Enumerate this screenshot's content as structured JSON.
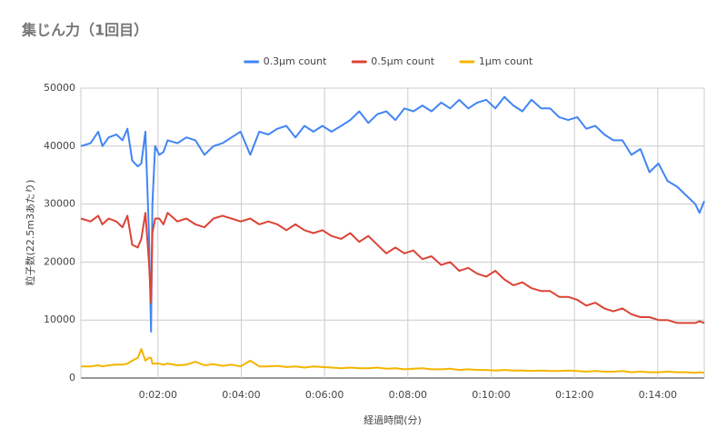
{
  "chart_data": {
    "type": "line",
    "title": "集じん力（1回目）",
    "x_label": "経過時間(分)",
    "y_label": "粒子数(22.5m3あたり)",
    "x": [
      9,
      23,
      34,
      40,
      49,
      60,
      69,
      76,
      83,
      91,
      96,
      102,
      107,
      110,
      112,
      116,
      122,
      128,
      134,
      148,
      161,
      174,
      187,
      200,
      213,
      226,
      239,
      253,
      266,
      279,
      292,
      305,
      318,
      331,
      344,
      357,
      370,
      384,
      397,
      410,
      423,
      436,
      449,
      462,
      475,
      488,
      501,
      514,
      528,
      541,
      554,
      567,
      580,
      593,
      606,
      619,
      632,
      645,
      658,
      672,
      685,
      698,
      711,
      724,
      737,
      750,
      763,
      776,
      789,
      802,
      815,
      828,
      841,
      854,
      868,
      881,
      894,
      900,
      907
    ],
    "series": [
      {
        "name": "0.3μm count",
        "color": "#4285f4",
        "values": [
          40000,
          40500,
          42500,
          40000,
          41500,
          42000,
          41000,
          43000,
          37500,
          36500,
          37000,
          42500,
          25000,
          8000,
          30000,
          40000,
          38500,
          39000,
          41000,
          40500,
          41500,
          41000,
          38500,
          40000,
          40500,
          41500,
          42500,
          38500,
          42500,
          42000,
          43000,
          43500,
          41500,
          43500,
          42500,
          43500,
          42500,
          43500,
          44500,
          46000,
          44000,
          45500,
          46000,
          44500,
          46500,
          46000,
          47000,
          46000,
          47500,
          46500,
          48000,
          46500,
          47500,
          48000,
          46500,
          48500,
          47000,
          46000,
          48000,
          46500,
          46500,
          45000,
          44500,
          45000,
          43000,
          43500,
          42000,
          41000,
          41000,
          38500,
          39500,
          35500,
          37000,
          34000,
          33000,
          31500,
          30000,
          28500,
          30500
        ]
      },
      {
        "name": "0.5μm count",
        "color": "#db4437",
        "values": [
          27500,
          27000,
          28000,
          26500,
          27500,
          27000,
          26000,
          28000,
          23000,
          22500,
          24000,
          28500,
          20000,
          13000,
          25000,
          27500,
          27500,
          26500,
          28500,
          27000,
          27500,
          26500,
          26000,
          27500,
          28000,
          27500,
          27000,
          27500,
          26500,
          27000,
          26500,
          25500,
          26500,
          25500,
          25000,
          25500,
          24500,
          24000,
          25000,
          23500,
          24500,
          23000,
          21500,
          22500,
          21500,
          22000,
          20500,
          21000,
          19500,
          20000,
          18500,
          19000,
          18000,
          17500,
          18500,
          17000,
          16000,
          16500,
          15500,
          15000,
          15000,
          14000,
          14000,
          13500,
          12500,
          13000,
          12000,
          11500,
          12000,
          11000,
          10500,
          10500,
          10000,
          10000,
          9500,
          9500,
          9500,
          9800,
          9500
        ]
      },
      {
        "name": "1μm count",
        "color": "#f4b400",
        "values": [
          2000,
          2000,
          2200,
          2000,
          2200,
          2300,
          2300,
          2500,
          3000,
          3500,
          5000,
          3000,
          3500,
          3500,
          2500,
          2500,
          2500,
          2300,
          2500,
          2200,
          2300,
          2800,
          2200,
          2400,
          2100,
          2300,
          2000,
          3000,
          2000,
          2000,
          2100,
          1900,
          2000,
          1800,
          2000,
          1900,
          1800,
          1700,
          1800,
          1700,
          1700,
          1800,
          1600,
          1700,
          1500,
          1600,
          1700,
          1500,
          1500,
          1600,
          1400,
          1500,
          1400,
          1400,
          1300,
          1400,
          1300,
          1300,
          1200,
          1300,
          1200,
          1200,
          1300,
          1200,
          1100,
          1200,
          1100,
          1100,
          1200,
          1000,
          1100,
          1000,
          1000,
          1100,
          1000,
          1000,
          900,
          1000,
          900
        ]
      }
    ],
    "xlim": [
      9,
      907
    ],
    "xticks": [
      {
        "value": 120,
        "label": "0:02:00"
      },
      {
        "value": 240,
        "label": "0:04:00"
      },
      {
        "value": 360,
        "label": "0:06:00"
      },
      {
        "value": 480,
        "label": "0:08:00"
      },
      {
        "value": 600,
        "label": "0:10:00"
      },
      {
        "value": 720,
        "label": "0:12:00"
      },
      {
        "value": 840,
        "label": "0:14:00"
      }
    ],
    "ylim": [
      0,
      50000
    ],
    "yticks": [
      0,
      10000,
      20000,
      30000,
      40000,
      50000
    ],
    "grid": true,
    "legend": "top"
  }
}
